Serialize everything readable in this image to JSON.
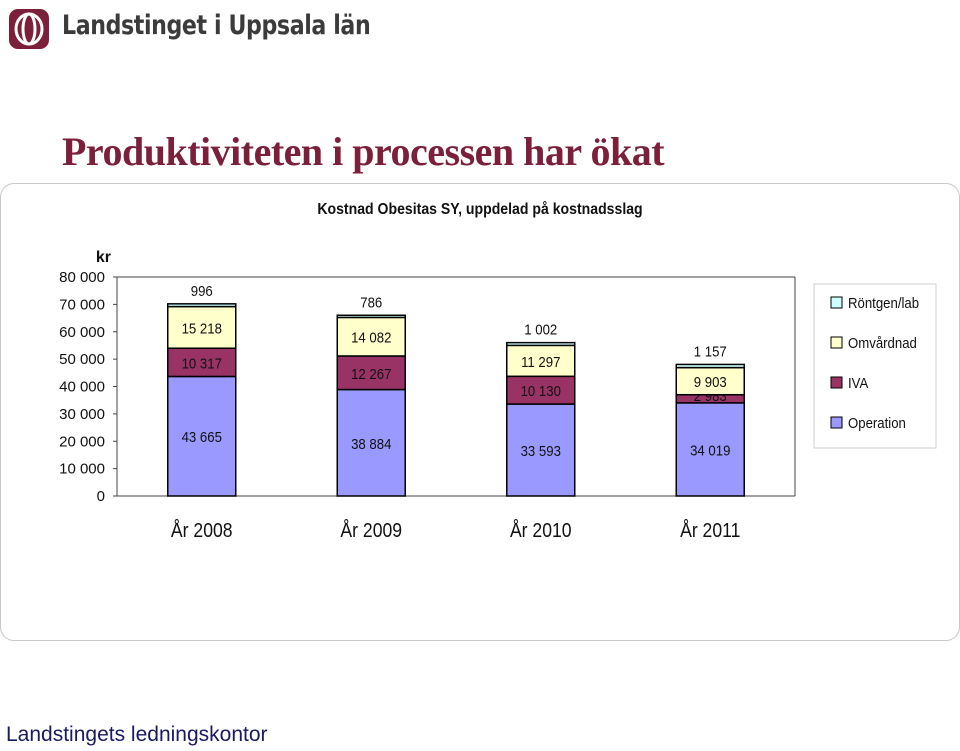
{
  "header": {
    "org_name": "Landstinget i Uppsala län",
    "logo_icon": "landstinget-logo-icon"
  },
  "slide": {
    "title": "Produktiviteten i processen har ökat"
  },
  "footer": {
    "text": "Landstingets ledningskontor"
  },
  "colors": {
    "brand": "#7b1f3b",
    "operation": "#9999ff",
    "iva": "#993366",
    "omvardnad": "#ffffcc",
    "rontgen": "#ccffff"
  },
  "chart_data": {
    "type": "bar",
    "stacked": true,
    "title": "Kostnad  Obesitas SY, uppdelad på kostnadsslag",
    "ylabel": "kr",
    "ylim": [
      0,
      80000
    ],
    "yticks": [
      0,
      10000,
      20000,
      30000,
      40000,
      50000,
      60000,
      70000,
      80000
    ],
    "ytick_labels": [
      "0",
      "10 000",
      "20 000",
      "30 000",
      "40 000",
      "50 000",
      "60 000",
      "70 000",
      "80 000"
    ],
    "categories": [
      "År 2008",
      "År 2009",
      "År 2010",
      "År 2011"
    ],
    "series": [
      {
        "name": "Operation",
        "color": "#9999ff",
        "values": [
          43665,
          38884,
          33593,
          34019
        ],
        "labels": [
          "43 665",
          "38 884",
          "33 593",
          "34 019"
        ]
      },
      {
        "name": "IVA",
        "color": "#993366",
        "values": [
          10317,
          12267,
          10130,
          2983
        ],
        "labels": [
          "10 317",
          "12 267",
          "10 130",
          "2 983"
        ]
      },
      {
        "name": "Omvårdnad",
        "color": "#ffffcc",
        "values": [
          15218,
          14082,
          11297,
          9903
        ],
        "labels": [
          "15 218",
          "14 082",
          "11 297",
          "9 903"
        ]
      },
      {
        "name": "Röntgen/lab",
        "color": "#ccffff",
        "values": [
          996,
          786,
          1002,
          1157
        ],
        "labels": [
          "996",
          "786",
          "1 002",
          "1 157"
        ]
      }
    ],
    "legend_order": [
      "Röntgen/lab",
      "Omvårdnad",
      "IVA",
      "Operation"
    ],
    "legend": "right",
    "grid": false
  }
}
